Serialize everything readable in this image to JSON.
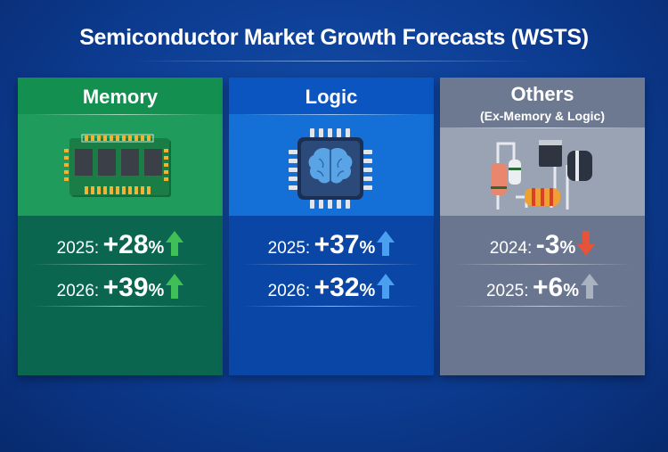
{
  "title": "Semiconductor Market Growth Forecasts (WSTS)",
  "panels": [
    {
      "name": "Memory",
      "subtitle": "",
      "icon": "memory-chip-icon",
      "colors": {
        "header": "#13904f",
        "body": "#1f9b5b",
        "bottom": "#0b6650"
      },
      "rows": [
        {
          "year": "2025:",
          "value": "+28",
          "unit": "%",
          "trend": "up",
          "arrow_color": "#3fbf55"
        },
        {
          "year": "2026:",
          "value": "+39",
          "unit": "%",
          "trend": "up",
          "arrow_color": "#3fbf55"
        }
      ]
    },
    {
      "name": "Logic",
      "subtitle": "",
      "icon": "brain-processor-icon",
      "colors": {
        "header": "#0b55c0",
        "body": "#146fd6",
        "bottom": "#0a46a6"
      },
      "rows": [
        {
          "year": "2025:",
          "value": "+37",
          "unit": "%",
          "trend": "up",
          "arrow_color": "#4a9ff0"
        },
        {
          "year": "2026:",
          "value": "+32",
          "unit": "%",
          "trend": "up",
          "arrow_color": "#4a9ff0"
        }
      ]
    },
    {
      "name": "Others",
      "subtitle": "(Ex-Memory & Logic)",
      "icon": "discrete-components-icon",
      "colors": {
        "header": "#6d7990",
        "body": "#9aa3b4",
        "bottom": "#6a768f"
      },
      "rows": [
        {
          "year": "2024:",
          "value": "-3",
          "unit": "%",
          "trend": "down",
          "arrow_color": "#e5533b"
        },
        {
          "year": "2025:",
          "value": "+6",
          "unit": "%",
          "trend": "up",
          "arrow_color": "#a9b2c0"
        }
      ]
    }
  ]
}
